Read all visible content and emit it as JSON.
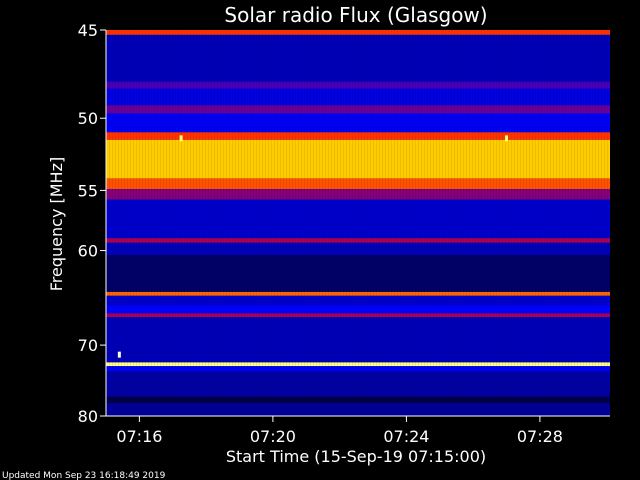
{
  "chart_data": {
    "type": "heatmap",
    "title": "Solar radio Flux (Glasgow)",
    "xlabel": "Start Time (15-Sep-19 07:15:00)",
    "ylabel": "Frequency [MHz]",
    "x_range_minutes": [
      0,
      15.1
    ],
    "x_ticks": [
      {
        "label": "07:16",
        "value": 1
      },
      {
        "label": "07:20",
        "value": 5
      },
      {
        "label": "07:24",
        "value": 9
      },
      {
        "label": "07:28",
        "value": 13
      }
    ],
    "y_range_mhz": [
      45,
      80
    ],
    "y_ticks": [
      45,
      50,
      55,
      60,
      70,
      80
    ],
    "y_scale": "reciprocal",
    "background_colormap": [
      "#000000",
      "#0000ff",
      "#ff0000",
      "#ffff00",
      "#ffffff"
    ],
    "bands": [
      {
        "from": 45.0,
        "to": 45.25,
        "level": 0.55
      },
      {
        "from": 45.25,
        "to": 47.8,
        "level": 0.18
      },
      {
        "from": 47.8,
        "to": 48.2,
        "level": 0.32
      },
      {
        "from": 48.2,
        "to": 49.2,
        "level": 0.22
      },
      {
        "from": 49.2,
        "to": 49.7,
        "level": 0.35
      },
      {
        "from": 49.7,
        "to": 50.9,
        "level": 0.24
      },
      {
        "from": 50.9,
        "to": 51.4,
        "level": 0.55
      },
      {
        "from": 51.4,
        "to": 54.1,
        "level": 0.7
      },
      {
        "from": 54.1,
        "to": 54.9,
        "level": 0.58
      },
      {
        "from": 54.9,
        "to": 55.7,
        "level": 0.38
      },
      {
        "from": 55.7,
        "to": 58.9,
        "level": 0.2
      },
      {
        "from": 58.9,
        "to": 59.3,
        "level": 0.42
      },
      {
        "from": 59.3,
        "to": 60.4,
        "level": 0.18
      },
      {
        "from": 60.4,
        "to": 64.0,
        "level": 0.1
      },
      {
        "from": 64.0,
        "to": 64.4,
        "level": 0.6
      },
      {
        "from": 64.4,
        "to": 65.4,
        "level": 0.2
      },
      {
        "from": 65.4,
        "to": 66.3,
        "level": 0.25
      },
      {
        "from": 66.3,
        "to": 66.7,
        "level": 0.42
      },
      {
        "from": 66.7,
        "to": 72.2,
        "level": 0.18
      },
      {
        "from": 72.2,
        "to": 72.7,
        "level": 0.88
      },
      {
        "from": 72.7,
        "to": 73.4,
        "level": 0.24
      },
      {
        "from": 73.4,
        "to": 77.0,
        "level": 0.16
      },
      {
        "from": 77.0,
        "to": 78.0,
        "level": 0.07
      },
      {
        "from": 78.0,
        "to": 80.0,
        "level": 0.15
      }
    ],
    "spots": [
      {
        "minute": 0.4,
        "mhz": 71.2,
        "level": 0.95
      },
      {
        "minute": 2.25,
        "mhz": 51.3,
        "level": 0.85
      },
      {
        "minute": 12.0,
        "mhz": 51.3,
        "level": 0.85
      }
    ]
  },
  "footer": "Updated Mon Sep 23 16:18:49 2019"
}
